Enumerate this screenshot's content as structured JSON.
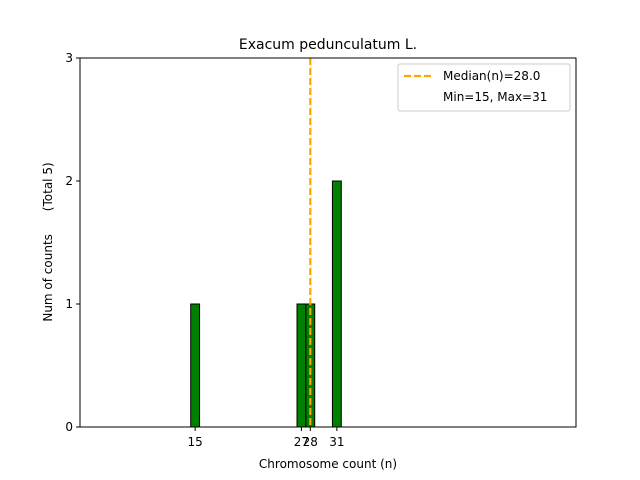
{
  "chart_data": {
    "type": "bar",
    "title": "Exacum pedunculatum L.",
    "xlabel": "Chromosome count (n)",
    "ylabel": "Num of counts      (Total 5)",
    "x": [
      15,
      27,
      28,
      31
    ],
    "values": [
      1,
      1,
      1,
      2
    ],
    "bar_width": 1,
    "xlim": [
      2,
      58
    ],
    "ylim": [
      0,
      3
    ],
    "xticks": [
      15,
      27,
      28,
      31
    ],
    "xtick_labels": [
      "15",
      "27",
      "28",
      "31"
    ],
    "yticks": [
      0,
      1,
      2,
      3
    ],
    "ytick_labels": [
      "0",
      "1",
      "2",
      "3"
    ],
    "baseline_x_range": [
      2,
      35
    ],
    "median": 28.0,
    "legend": {
      "placement": "top-right",
      "entries": [
        "Median(n)=28.0",
        "Min=15, Max=31"
      ]
    },
    "colors": {
      "bar": "#008000",
      "bar_edge": "#000000",
      "median_line": "#FFA500"
    },
    "grid": false
  }
}
